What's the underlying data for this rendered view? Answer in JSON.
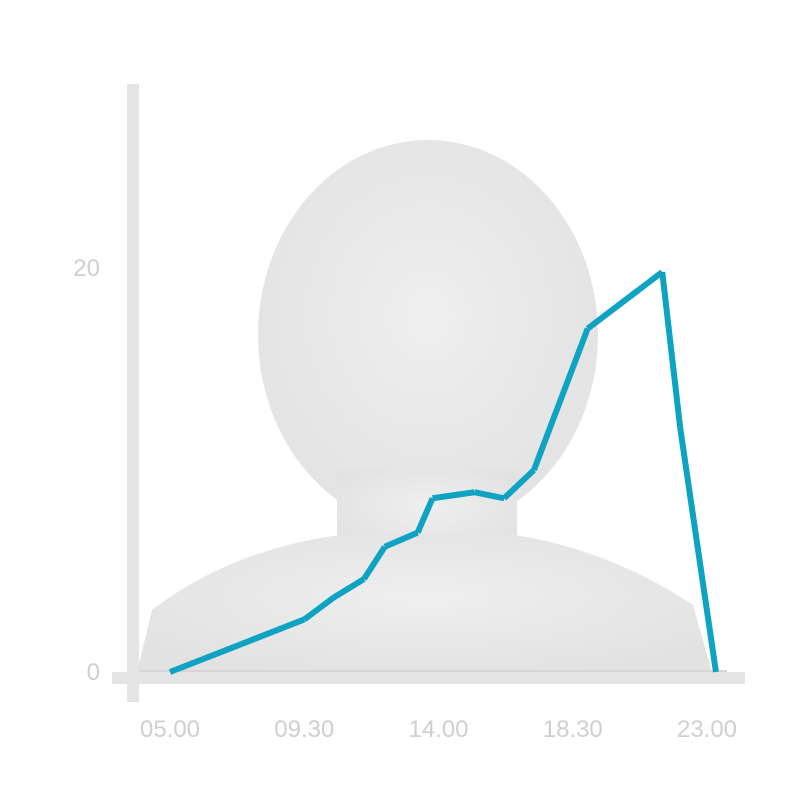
{
  "chart_data": {
    "type": "line",
    "title": "",
    "xlabel": "",
    "ylabel": "",
    "x_ticks": [
      "05.00",
      "09.30",
      "14.00",
      "18.30",
      "23.00"
    ],
    "y_ticks": [
      0,
      20
    ],
    "xlim": [
      5.0,
      23.5
    ],
    "ylim": [
      0,
      30
    ],
    "grid": false,
    "series": [
      {
        "color": "#0ea3c3",
        "points": [
          {
            "x": 5.0,
            "y": 0.0
          },
          {
            "x": 9.5,
            "y": 2.6
          },
          {
            "x": 10.5,
            "y": 3.7
          },
          {
            "x": 11.5,
            "y": 4.6
          },
          {
            "x": 12.2,
            "y": 6.2
          },
          {
            "x": 13.3,
            "y": 6.9
          },
          {
            "x": 13.8,
            "y": 8.6
          },
          {
            "x": 15.2,
            "y": 8.9
          },
          {
            "x": 16.2,
            "y": 8.6
          },
          {
            "x": 17.2,
            "y": 10.0
          },
          {
            "x": 19.0,
            "y": 17.0
          },
          {
            "x": 21.5,
            "y": 19.8
          },
          {
            "x": 22.1,
            "y": 12.1
          },
          {
            "x": 23.3,
            "y": 0.0
          }
        ]
      }
    ],
    "background_image": "person-silhouette-icon"
  },
  "colors": {
    "axis": "#e4e4e4",
    "tick_text": "#cfcfcf",
    "line": "#0ea3c3",
    "silhouette": "#e6e6e6"
  }
}
